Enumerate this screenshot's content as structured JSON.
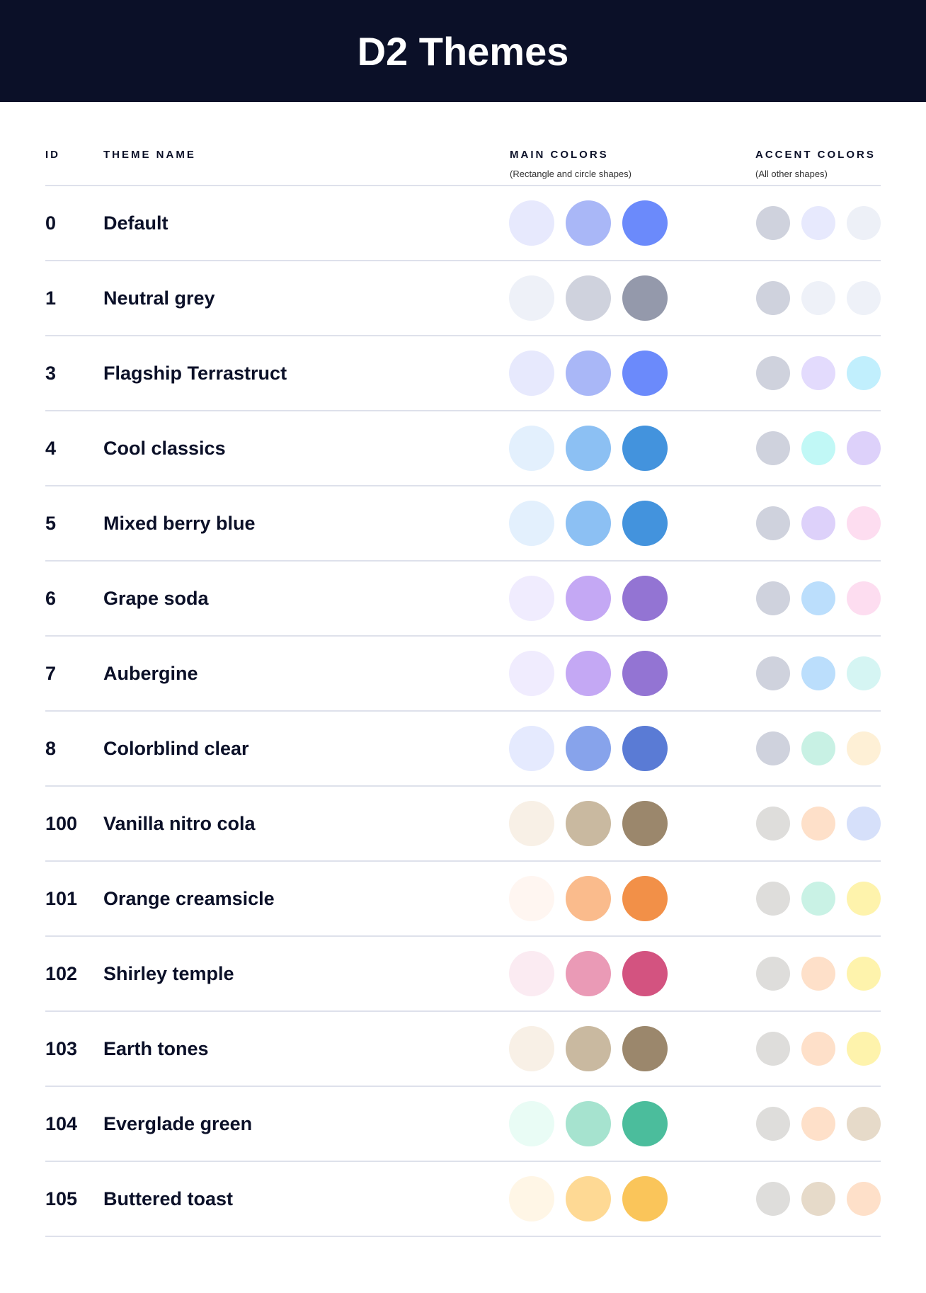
{
  "title": "D2 Themes",
  "headers": {
    "id": "ID",
    "name": "THEME NAME",
    "main": "MAIN COLORS",
    "main_sub": "(Rectangle and circle shapes)",
    "accent": "ACCENT COLORS",
    "accent_sub": "(All other shapes)"
  },
  "themes": [
    {
      "id": "0",
      "name": "Default",
      "main": [
        "#E7E9FD",
        "#A9B7F7",
        "#6B8AFB"
      ],
      "accent": [
        "#CFD2DD",
        "#E7E9FD",
        "#EDF0F7"
      ]
    },
    {
      "id": "1",
      "name": "Neutral grey",
      "main": [
        "#EEF1F8",
        "#CFD2DD",
        "#9499AB"
      ],
      "accent": [
        "#CFD2DD",
        "#EEF1F8",
        "#EEF1F8"
      ]
    },
    {
      "id": "3",
      "name": "Flagship Terrastruct",
      "main": [
        "#E7E9FD",
        "#A9B7F7",
        "#6B8AFB"
      ],
      "accent": [
        "#CFD2DD",
        "#E3DBFD",
        "#C1EFFD"
      ]
    },
    {
      "id": "4",
      "name": "Cool classics",
      "main": [
        "#E3F0FD",
        "#8CC0F3",
        "#4393DD"
      ],
      "accent": [
        "#CFD2DD",
        "#C1F8F6",
        "#DDD1FA"
      ]
    },
    {
      "id": "5",
      "name": "Mixed berry blue",
      "main": [
        "#E3F0FD",
        "#8CC0F3",
        "#4393DD"
      ],
      "accent": [
        "#CFD2DD",
        "#DDD1FA",
        "#FDDDF0"
      ]
    },
    {
      "id": "6",
      "name": "Grape soda",
      "main": [
        "#F0ECFE",
        "#C4A8F4",
        "#9374D3"
      ],
      "accent": [
        "#CFD2DD",
        "#BBDEFC",
        "#FDDDF0"
      ]
    },
    {
      "id": "7",
      "name": "Aubergine",
      "main": [
        "#F0ECFE",
        "#C4A8F4",
        "#9374D3"
      ],
      "accent": [
        "#CFD2DD",
        "#BBDEFC",
        "#D5F5F3"
      ]
    },
    {
      "id": "8",
      "name": "Colorblind clear",
      "main": [
        "#E5EAFE",
        "#87A3EB",
        "#5A7BD5"
      ],
      "accent": [
        "#CFD2DD",
        "#C8F1E4",
        "#FEF0D6"
      ]
    },
    {
      "id": "100",
      "name": "Vanilla nitro cola",
      "main": [
        "#F8F0E6",
        "#C9B9A0",
        "#9B876C"
      ],
      "accent": [
        "#DEDDDB",
        "#FEE0C9",
        "#D6E0FA"
      ]
    },
    {
      "id": "101",
      "name": "Orange creamsicle",
      "main": [
        "#FFF6F1",
        "#FABB8C",
        "#F29048"
      ],
      "accent": [
        "#DEDDDB",
        "#C9F2E5",
        "#FEF3AC"
      ]
    },
    {
      "id": "102",
      "name": "Shirley temple",
      "main": [
        "#FBEBF2",
        "#EA9AB6",
        "#D35380"
      ],
      "accent": [
        "#DEDDDB",
        "#FEE0C9",
        "#FEF3AC"
      ]
    },
    {
      "id": "103",
      "name": "Earth tones",
      "main": [
        "#F8F0E6",
        "#C9B9A0",
        "#9B876C"
      ],
      "accent": [
        "#DEDDDB",
        "#FEE0C9",
        "#FEF3AC"
      ]
    },
    {
      "id": "104",
      "name": "Everglade green",
      "main": [
        "#E9FCF5",
        "#A6E3CF",
        "#4BBD9C"
      ],
      "accent": [
        "#DEDDDB",
        "#FEE0C9",
        "#E6DAC9"
      ]
    },
    {
      "id": "105",
      "name": "Buttered toast",
      "main": [
        "#FFF6E6",
        "#FED994",
        "#FAC55A"
      ],
      "accent": [
        "#DEDDDB",
        "#E6DAC9",
        "#FEE0C9"
      ]
    }
  ]
}
